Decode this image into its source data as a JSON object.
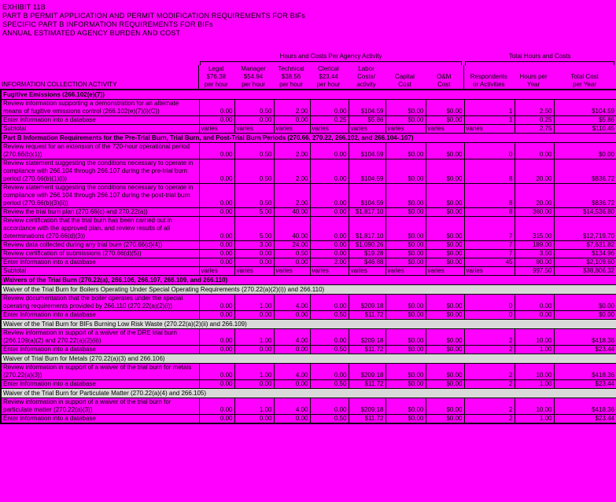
{
  "title_lines": [
    "EXHIBIT 11B",
    "PART B PERMIT APPLICATION AND PERMIT MODIFICATION REQUIREMENTS FOR BIFs",
    "SPECIFIC PART B INFORMATION REQUIREMENTS FOR BIFs",
    "ANNUAL ESTIMATED AGENCY BURDEN AND COST"
  ],
  "group_headers": {
    "agency": "Hours and Costs Per Agency Activity",
    "total": "Total Hours and Costs"
  },
  "info_label": "INFORMATION COLLECTION ACTIVITY",
  "columns": [
    {
      "lines": [
        "Legal",
        "$76.38",
        "per hour"
      ]
    },
    {
      "lines": [
        "Manager",
        "$54.94",
        "per hour"
      ]
    },
    {
      "lines": [
        "Technical",
        "$38.56",
        "per hour"
      ]
    },
    {
      "lines": [
        "Clerical",
        "$23.44",
        "per hour"
      ]
    },
    {
      "lines": [
        "Labor",
        "Costs/",
        "activity"
      ]
    },
    {
      "lines": [
        "Capital",
        "Cost"
      ]
    },
    {
      "lines": [
        "O&M",
        "Cost"
      ]
    },
    {
      "lines": [
        "Respondents",
        "or Activities"
      ]
    },
    {
      "lines": [
        "Hours per",
        "Year"
      ]
    },
    {
      "lines": [
        "Total Cost",
        "per Year"
      ]
    }
  ],
  "colors": {
    "page_background": "#FF00FF",
    "subheader_background": "#D9D9D9",
    "text": "#000000"
  },
  "rows": [
    {
      "type": "section",
      "label": "Fugitive Emissions (266.102(e)(7))"
    },
    {
      "type": "data",
      "desc": "Review information supporting a demonstration for an alternate means of fugitive emissions control (266.102(e)(7)(i)(C))",
      "values": [
        "0.00",
        "0.50",
        "2.00",
        "0.00",
        "$104.59",
        "$0.00",
        "$0.00",
        "1",
        "2.50",
        "$104.59"
      ]
    },
    {
      "type": "data",
      "desc": "Enter information into a database",
      "values": [
        "0.00",
        "0.00",
        "0.00",
        "0.25",
        "$5.86",
        "$0.00",
        "$0.00",
        "1",
        "0.25",
        "$5.86"
      ]
    },
    {
      "type": "subtotal",
      "desc": "Subtotal",
      "values": [
        "varies",
        "varies",
        "varies",
        "varies",
        "varies",
        "varies",
        "varies",
        "varies",
        "2.75",
        "$110.45"
      ]
    },
    {
      "type": "section",
      "label": "Part B Information Requirements for the Pre-Trial Burn, Trial Burn, and Post-Trial Burn Periods (270.66, 270.22, 266.102, and 266.104-.107)"
    },
    {
      "type": "data",
      "desc": "Review request for an extension of the 720-hour operational period (270.66(b)(1))",
      "values": [
        "0.00",
        "0.50",
        "2.00",
        "0.00",
        "$104.59",
        "$0.00",
        "$0.00",
        "0",
        "0.00",
        "$0.00"
      ]
    },
    {
      "type": "data",
      "desc": "Review statement suggesting the conditions necessary to operate in compliance with 266.104 through 266.107 during the pre-trial burn period (270.66(b)(1)(i))",
      "values": [
        "0.00",
        "0.50",
        "2.00",
        "0.00",
        "$104.59",
        "$0.00",
        "$0.00",
        "8",
        "20.00",
        "$836.72"
      ]
    },
    {
      "type": "data",
      "desc": "Review statement suggesting the conditions necessary to operate in compliance with 266.104 through 266.107 during the post-trial burn period (270.66(b)(3)(ii))",
      "values": [
        "0.00",
        "0.50",
        "2.00",
        "0.00",
        "$104.59",
        "$0.00",
        "$0.00",
        "8",
        "20.00",
        "$836.72"
      ]
    },
    {
      "type": "data",
      "desc": "Review the trial burn plan (270.66(c) and 270.22(a))",
      "values": [
        "0.00",
        "5.00",
        "40.00",
        "0.00",
        "$1,817.10",
        "$0.00",
        "$0.00",
        "8",
        "360.00",
        "$14,536.80"
      ]
    },
    {
      "type": "data",
      "desc": "Review certification that the trial burn has been carried out in accordance with the approved plan, and review results of all determinations (270.66(d)(3))",
      "values": [
        "0.00",
        "5.00",
        "40.00",
        "0.00",
        "$1,817.10",
        "$0.00",
        "$0.00",
        "7",
        "315.00",
        "$12,719.70"
      ]
    },
    {
      "type": "data",
      "desc": "Review data collected during any trial burn (270.66(d)(4))",
      "values": [
        "0.00",
        "3.00",
        "24.00",
        "0.00",
        "$1,090.26",
        "$0.00",
        "$0.00",
        "7",
        "189.00",
        "$7,631.82"
      ]
    },
    {
      "type": "data",
      "desc": "Review certification of submissions (270.66(d)(5))",
      "values": [
        "0.00",
        "0.00",
        "0.50",
        "0.00",
        "$19.28",
        "$0.00",
        "$0.00",
        "7",
        "3.50",
        "$134.96"
      ]
    },
    {
      "type": "data",
      "desc": "Enter information into a database",
      "values": [
        "0.00",
        "0.00",
        "0.00",
        "2.00",
        "$46.88",
        "$0.00",
        "$0.00",
        "45",
        "90.00",
        "$2,109.60"
      ]
    },
    {
      "type": "subtotal",
      "desc": "Subtotal",
      "values": [
        "varies",
        "varies",
        "varies",
        "varies",
        "varies",
        "varies",
        "varies",
        "varies",
        "997.50",
        "$38,806.32"
      ]
    },
    {
      "type": "section",
      "label": "Waivers of the Trial Burn (270.22(a), 266.106, 266.107, 266.109, and 266.110)"
    },
    {
      "type": "subheader",
      "label": "Waiver of the Trial Burn for Boilers Operating Under Special Operating Requirements (270.22(a)(2)(i)) and 266.110)"
    },
    {
      "type": "data",
      "desc": "Review documentation that the boiler operates under the special operating requirements provided by 266.110 (270.22(a)(2)(i))",
      "values": [
        "0.00",
        "1.00",
        "4.00",
        "0.00",
        "$209.18",
        "$0.00",
        "$0.00",
        "0",
        "0.00",
        "$0.00"
      ]
    },
    {
      "type": "data",
      "desc": "Enter information into a database",
      "values": [
        "0.00",
        "0.00",
        "0.00",
        "0.50",
        "$11.72",
        "$0.00",
        "$0.00",
        "0",
        "0.00",
        "$0.00"
      ]
    },
    {
      "type": "subheader",
      "label": "Waiver of the Trial Burn for BIFs Burning Low Risk Waste (270.22(a)(2)(ii) and 266.109)"
    },
    {
      "type": "data",
      "desc": "Review information in support of a waiver of the DRE trial burn (266.109(a)(2) and 270.22(a)(2)(ii))",
      "values": [
        "0.00",
        "1.00",
        "4.00",
        "0.00",
        "$209.18",
        "$0.00",
        "$0.00",
        "2",
        "10.00",
        "$418.36"
      ]
    },
    {
      "type": "data",
      "desc": "Enter information into a database",
      "values": [
        "0.00",
        "0.00",
        "0.00",
        "0.50",
        "$11.72",
        "$0.00",
        "$0.00",
        "2",
        "1.00",
        "$23.44"
      ]
    },
    {
      "type": "subheader",
      "label": "Waiver of Trial Burn for Metals (270.22(a)(3) and 266.106)"
    },
    {
      "type": "data",
      "desc": "Review information in support of a waiver of the trial burn for metals (270.22(a)(3))",
      "values": [
        "0.00",
        "1.00",
        "4.00",
        "0.00",
        "$209.18",
        "$0.00",
        "$0.00",
        "2",
        "10.00",
        "$418.36"
      ]
    },
    {
      "type": "data",
      "desc": "Enter information into a database",
      "values": [
        "0.00",
        "0.00",
        "0.00",
        "0.50",
        "$11.72",
        "$0.00",
        "$0.00",
        "2",
        "1.00",
        "$23.44"
      ]
    },
    {
      "type": "subheader",
      "label": "Waiver of the Trial Burn for Particulate Matter (270.22(a)(4) and 266.105)"
    },
    {
      "type": "data",
      "desc": "Review information in support of a waiver of the trial burn for particulate matter (270.22(a)(3))",
      "values": [
        "0.00",
        "1.00",
        "4.00",
        "0.00",
        "$209.18",
        "$0.00",
        "$0.00",
        "2",
        "10.00",
        "$418.36"
      ]
    },
    {
      "type": "data",
      "desc": "Enter information into a database",
      "values": [
        "0.00",
        "0.00",
        "0.00",
        "0.50",
        "$11.72",
        "$0.00",
        "$0.00",
        "2",
        "1.00",
        "$23.44"
      ]
    }
  ]
}
